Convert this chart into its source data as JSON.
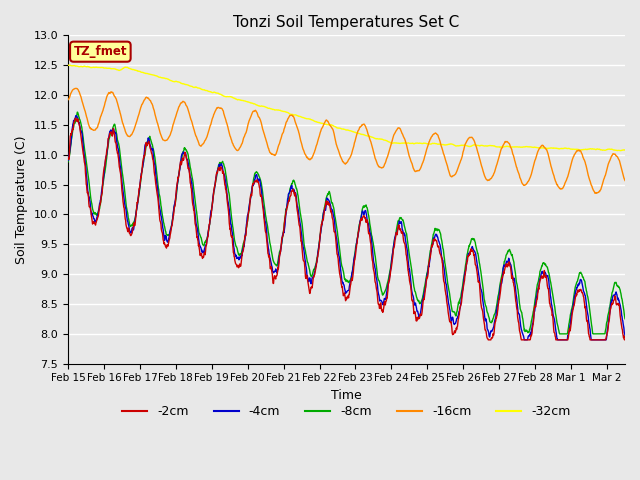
{
  "title": "Tonzi Soil Temperatures Set C",
  "xlabel": "Time",
  "ylabel": "Soil Temperature (C)",
  "ylim": [
    7.5,
    13.0
  ],
  "series_colors": {
    "-2cm": "#cc0000",
    "-4cm": "#0000cc",
    "-8cm": "#00aa00",
    "-16cm": "#ff8800",
    "-32cm": "#ffff00"
  },
  "background_color": "#e8e8e8",
  "plot_bg_color": "#e8e8e8",
  "grid_color": "#ffffff",
  "annotation_text": "TZ_fmet",
  "annotation_bg": "#ffff99",
  "annotation_border": "#aa0000",
  "x_tick_labels": [
    "Feb 15",
    "Feb 16",
    "Feb 17",
    "Feb 18",
    "Feb 19",
    "Feb 20",
    "Feb 21",
    "Feb 22",
    "Feb 23",
    "Feb 24",
    "Feb 25",
    "Feb 26",
    "Feb 27",
    "Feb 28",
    "Mar 1",
    "Mar 2"
  ],
  "n_points": 1500,
  "end_day": 15.5
}
